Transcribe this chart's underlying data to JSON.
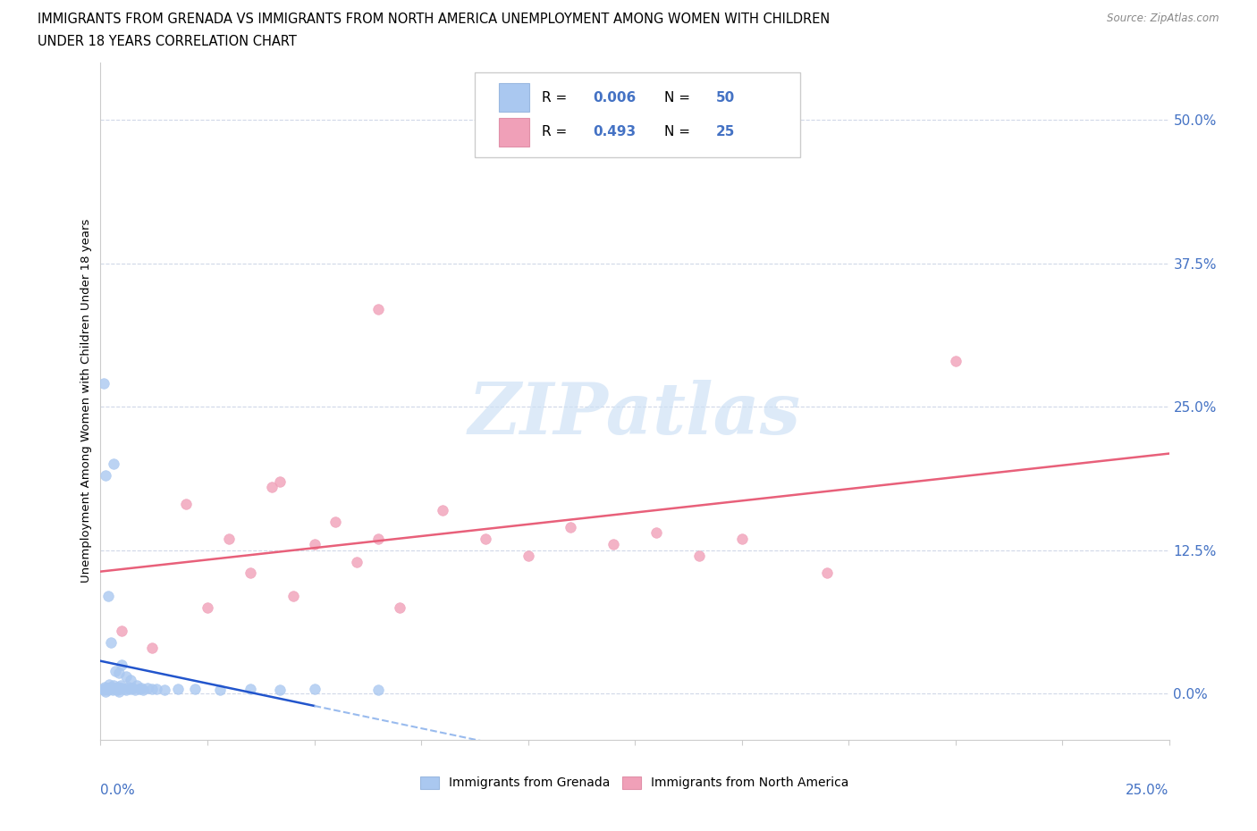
{
  "title_line1": "IMMIGRANTS FROM GRENADA VS IMMIGRANTS FROM NORTH AMERICA UNEMPLOYMENT AMONG WOMEN WITH CHILDREN",
  "title_line2": "UNDER 18 YEARS CORRELATION CHART",
  "source": "Source: ZipAtlas.com",
  "ylabel": "Unemployment Among Women with Children Under 18 years",
  "ytick_labels": [
    "0.0%",
    "12.5%",
    "25.0%",
    "37.5%",
    "50.0%"
  ],
  "ytick_values": [
    0.0,
    12.5,
    25.0,
    37.5,
    50.0
  ],
  "xlim": [
    0.0,
    25.0
  ],
  "ylim": [
    -4.0,
    55.0
  ],
  "r_grenada": 0.006,
  "n_grenada": 50,
  "r_north_america": 0.493,
  "n_north_america": 25,
  "color_grenada": "#aac8f0",
  "color_north_america": "#f0a0b8",
  "color_line_grenada_solid": "#2255cc",
  "color_line_grenada_dash": "#99bbee",
  "color_line_north_america": "#e8607a",
  "watermark_text": "ZIPatlas",
  "watermark_color": "#cce0f5",
  "legend_label_grenada": "Immigrants from Grenada",
  "legend_label_na": "Immigrants from North America",
  "grenada_x": [
    0.05,
    0.08,
    0.1,
    0.12,
    0.15,
    0.18,
    0.2,
    0.22,
    0.25,
    0.28,
    0.3,
    0.32,
    0.35,
    0.38,
    0.4,
    0.42,
    0.45,
    0.48,
    0.5,
    0.55,
    0.6,
    0.65,
    0.7,
    0.75,
    0.8,
    0.85,
    0.9,
    0.95,
    1.0,
    1.1,
    1.2,
    1.3,
    1.5,
    1.8,
    2.2,
    2.8,
    3.5,
    4.2,
    5.0,
    6.5,
    0.08,
    0.12,
    0.18,
    0.25,
    0.3,
    0.35,
    0.42,
    0.5,
    0.6,
    0.7
  ],
  "grenada_y": [
    0.4,
    0.3,
    0.6,
    0.2,
    0.5,
    0.3,
    0.8,
    0.4,
    0.6,
    0.3,
    0.7,
    0.4,
    0.5,
    0.3,
    0.6,
    0.2,
    0.4,
    0.7,
    0.5,
    0.4,
    0.3,
    0.6,
    0.4,
    0.5,
    0.3,
    0.7,
    0.4,
    0.5,
    0.3,
    0.5,
    0.4,
    0.4,
    0.3,
    0.4,
    0.4,
    0.3,
    0.4,
    0.3,
    0.4,
    0.3,
    27.0,
    19.0,
    8.5,
    4.5,
    20.0,
    2.0,
    1.8,
    2.5,
    1.5,
    1.2
  ],
  "na_x": [
    0.5,
    1.2,
    2.0,
    2.5,
    3.0,
    3.5,
    4.0,
    4.5,
    5.0,
    5.5,
    6.0,
    6.5,
    7.0,
    8.0,
    9.0,
    10.0,
    11.0,
    12.0,
    13.0,
    14.0,
    15.0,
    17.0,
    20.0,
    6.5,
    4.2
  ],
  "na_y": [
    5.5,
    4.0,
    16.5,
    7.5,
    13.5,
    10.5,
    18.0,
    8.5,
    13.0,
    15.0,
    11.5,
    33.5,
    7.5,
    16.0,
    13.5,
    12.0,
    14.5,
    13.0,
    14.0,
    12.0,
    13.5,
    10.5,
    29.0,
    13.5,
    18.5
  ]
}
